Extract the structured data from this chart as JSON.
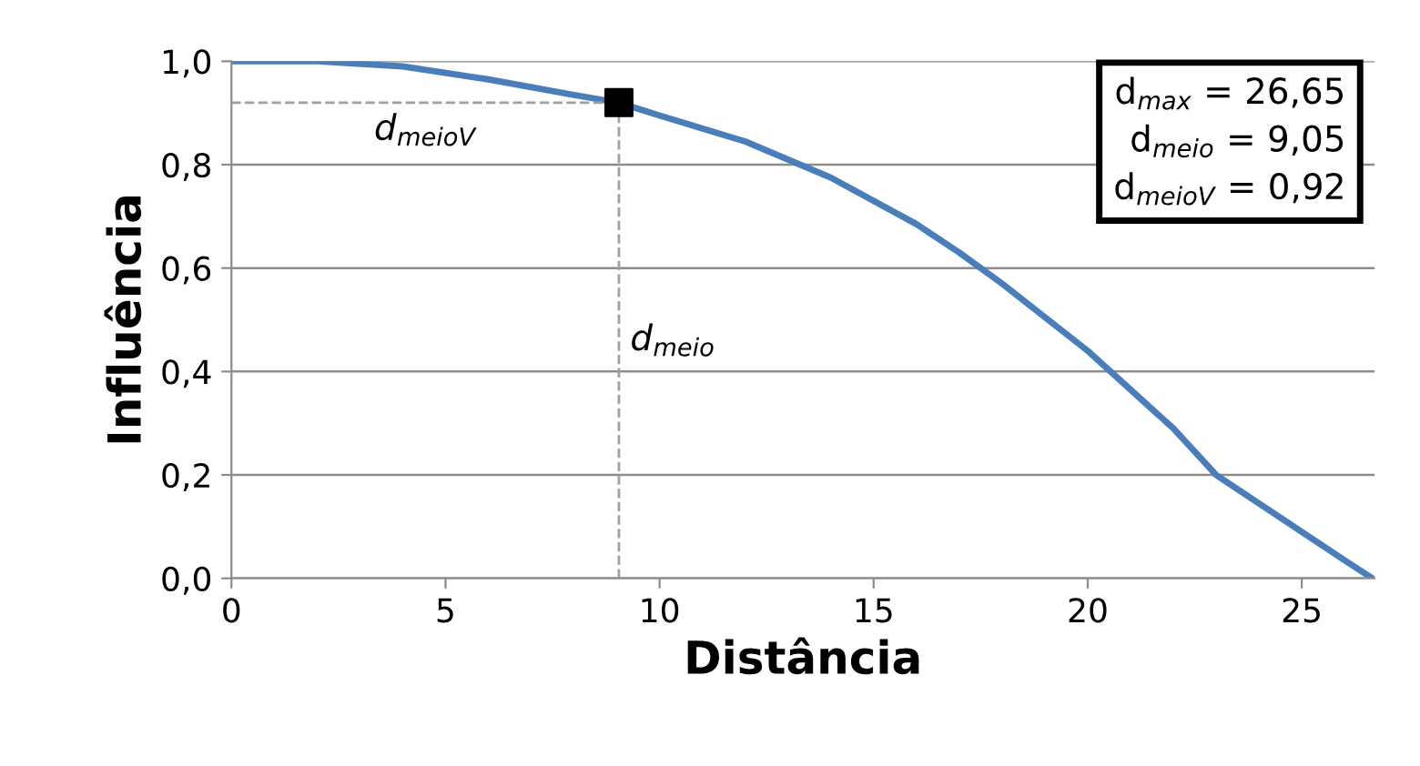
{
  "chart_data": {
    "type": "line",
    "xlabel": "Distância",
    "ylabel": "Influência",
    "xlim": [
      0,
      26.7
    ],
    "xticks": [
      0,
      5,
      10,
      15,
      20,
      25
    ],
    "ylim": [
      0,
      1.0
    ],
    "yticks": [
      {
        "value": 0,
        "label": "0,0"
      },
      {
        "value": 0.2,
        "label": "0,2"
      },
      {
        "value": 0.4,
        "label": "0,4"
      },
      {
        "value": 0.6,
        "label": "0,6"
      },
      {
        "value": 0.8,
        "label": "0,8"
      },
      {
        "value": 1.0,
        "label": "1,0"
      }
    ],
    "grid": "y",
    "series": [
      {
        "color": "#4a7ebb",
        "marker": "none",
        "x": [
          0,
          2,
          4,
          6,
          8,
          9.05,
          10,
          12,
          14,
          16,
          17,
          18,
          20,
          22,
          23,
          24,
          25,
          26,
          26.65
        ],
        "values": [
          1.0,
          1.0,
          0.99,
          0.965,
          0.935,
          0.92,
          0.895,
          0.845,
          0.775,
          0.685,
          0.63,
          0.57,
          0.44,
          0.29,
          0.2,
          0.145,
          0.09,
          0.035,
          0
        ]
      },
      {
        "type": "scatter",
        "color": "#000000",
        "marker": "square",
        "x": [
          9.05
        ],
        "values": [
          0.92
        ]
      }
    ],
    "ref_lines": [
      {
        "axis": "x",
        "value": 9.05,
        "color": "#a0a0a0",
        "line_style": "dashed",
        "label": "d$_{meio}$"
      },
      {
        "axis": "y",
        "value": 0.92,
        "color": "#a0a0a0",
        "line_style": "dashed",
        "label": "d$_{meioV}$"
      }
    ],
    "annotations": [
      "d$_{max}$ = 26,65",
      "d$_{meio}$ = 9,05",
      "d$_{meioV}$ = 0,92"
    ]
  }
}
